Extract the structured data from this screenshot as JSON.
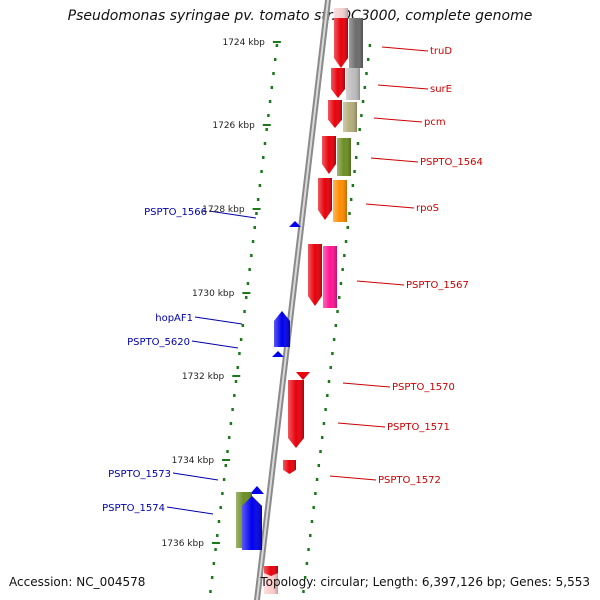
{
  "header": {
    "title": "Pseudomonas syringae pv. tomato str. DC3000, complete genome"
  },
  "footer": {
    "accession": "Accession: NC_004578",
    "summary": "Topology: circular; Length: 6,397,126 bp; Genes: 5,553"
  },
  "scale": {
    "ticks": [
      {
        "label": "1724 kbp"
      },
      {
        "label": "1726 kbp"
      },
      {
        "label": "1728 kbp"
      },
      {
        "label": "1730 kbp"
      },
      {
        "label": "1732 kbp"
      },
      {
        "label": "1734 kbp"
      },
      {
        "label": "1736 kbp"
      }
    ]
  },
  "genes": {
    "forward": [
      {
        "name": "truD",
        "color": "#e8000b",
        "partner_color": "#6b6b6b"
      },
      {
        "name": "surE",
        "color": "#e8000b",
        "partner_color": "#bdbdbd"
      },
      {
        "name": "pcm",
        "color": "#e8000b",
        "partner_color": "#b5ad7a"
      },
      {
        "name": "PSPTO_1564",
        "color": "#e8000b",
        "partner_color": "#6b8e23"
      },
      {
        "name": "rpoS",
        "color": "#e8000b",
        "partner_color": "#ff8c00"
      },
      {
        "name": "PSPTO_1567",
        "color": "#e8000b",
        "partner_color": "#ff1493"
      },
      {
        "name": "PSPTO_1570",
        "color": "#e8000b"
      },
      {
        "name": "PSPTO_1571",
        "color": "#e8000b"
      },
      {
        "name": "PSPTO_1572",
        "color": "#e8000b"
      }
    ],
    "reverse": [
      {
        "name": "PSPTO_1566",
        "color": "#0000ee"
      },
      {
        "name": "hopAF1",
        "color": "#0000ee"
      },
      {
        "name": "PSPTO_5620",
        "color": "#0000ee"
      },
      {
        "name": "PSPTO_1573",
        "color": "#0000ee",
        "partner_color": "#6b8e23"
      },
      {
        "name": "PSPTO_1574",
        "color": "#0000ee"
      }
    ]
  },
  "colors": {
    "forward_label": "#cc0000",
    "reverse_label": "#0000aa",
    "tick": "#1a7a1a",
    "backbone": "#8a8a8a"
  }
}
